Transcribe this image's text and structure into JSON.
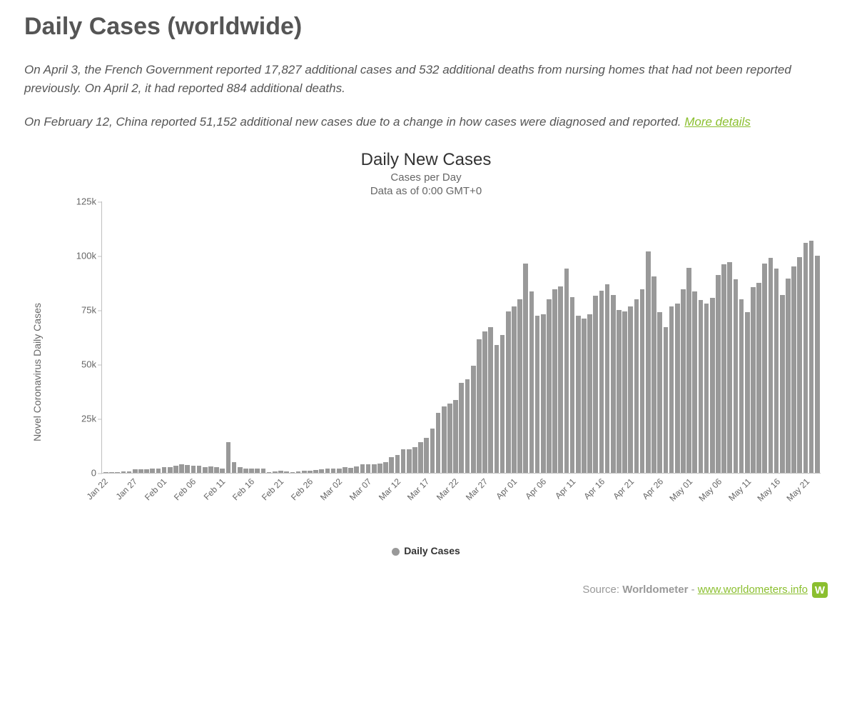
{
  "title": "Daily Cases (worldwide)",
  "notes": {
    "p1": "On April 3, the French Government reported 17,827 additional cases and 532 additional deaths from nursing homes that had not been reported previously. On April 2, it had reported 884 additional deaths.",
    "p2": "On February 12, China reported 51,152 additional new cases due to a change in how cases were diagnosed and reported. ",
    "more_label": "More details"
  },
  "chart": {
    "type": "bar",
    "title": "Daily New Cases",
    "subtitle1": "Cases per Day",
    "subtitle2": "Data as of 0:00 GMT+0",
    "y_axis_title": "Novel Coronavirus Daily Cases",
    "ylim": [
      0,
      125000
    ],
    "yticks": [
      {
        "v": 0,
        "label": "0"
      },
      {
        "v": 25000,
        "label": "25k"
      },
      {
        "v": 50000,
        "label": "50k"
      },
      {
        "v": 75000,
        "label": "75k"
      },
      {
        "v": 100000,
        "label": "100k"
      },
      {
        "v": 125000,
        "label": "125k"
      }
    ],
    "bar_color": "#999999",
    "axis_color": "#bfbfbf",
    "tick_font_color": "#666666",
    "title_color": "#333333",
    "background_color": "#ffffff",
    "legend_label": "Daily Cases",
    "legend_dot_color": "#999999",
    "x_tick_every": 5,
    "series": [
      {
        "date": "Jan 22",
        "value": 200
      },
      {
        "date": "Jan 23",
        "value": 300
      },
      {
        "date": "Jan 24",
        "value": 500
      },
      {
        "date": "Jan 25",
        "value": 700
      },
      {
        "date": "Jan 26",
        "value": 800
      },
      {
        "date": "Jan 27",
        "value": 1800
      },
      {
        "date": "Jan 28",
        "value": 1500
      },
      {
        "date": "Jan 29",
        "value": 1700
      },
      {
        "date": "Jan 30",
        "value": 2000
      },
      {
        "date": "Jan 31",
        "value": 2100
      },
      {
        "date": "Feb 01",
        "value": 2600
      },
      {
        "date": "Feb 02",
        "value": 2800
      },
      {
        "date": "Feb 03",
        "value": 3200
      },
      {
        "date": "Feb 04",
        "value": 3900
      },
      {
        "date": "Feb 05",
        "value": 3700
      },
      {
        "date": "Feb 06",
        "value": 3200
      },
      {
        "date": "Feb 07",
        "value": 3400
      },
      {
        "date": "Feb 08",
        "value": 2700
      },
      {
        "date": "Feb 09",
        "value": 3000
      },
      {
        "date": "Feb 10",
        "value": 2500
      },
      {
        "date": "Feb 11",
        "value": 2000
      },
      {
        "date": "Feb 12",
        "value": 14200
      },
      {
        "date": "Feb 13",
        "value": 5100
      },
      {
        "date": "Feb 14",
        "value": 2700
      },
      {
        "date": "Feb 15",
        "value": 2100
      },
      {
        "date": "Feb 16",
        "value": 2100
      },
      {
        "date": "Feb 17",
        "value": 2000
      },
      {
        "date": "Feb 18",
        "value": 1900
      },
      {
        "date": "Feb 19",
        "value": 500
      },
      {
        "date": "Feb 20",
        "value": 600
      },
      {
        "date": "Feb 21",
        "value": 1000
      },
      {
        "date": "Feb 22",
        "value": 700
      },
      {
        "date": "Feb 23",
        "value": 500
      },
      {
        "date": "Feb 24",
        "value": 600
      },
      {
        "date": "Feb 25",
        "value": 900
      },
      {
        "date": "Feb 26",
        "value": 1000
      },
      {
        "date": "Feb 27",
        "value": 1400
      },
      {
        "date": "Feb 28",
        "value": 1800
      },
      {
        "date": "Feb 29",
        "value": 2000
      },
      {
        "date": "Mar 01",
        "value": 2000
      },
      {
        "date": "Mar 02",
        "value": 2000
      },
      {
        "date": "Mar 03",
        "value": 2600
      },
      {
        "date": "Mar 04",
        "value": 2400
      },
      {
        "date": "Mar 05",
        "value": 3000
      },
      {
        "date": "Mar 06",
        "value": 4000
      },
      {
        "date": "Mar 07",
        "value": 4100
      },
      {
        "date": "Mar 08",
        "value": 4000
      },
      {
        "date": "Mar 09",
        "value": 4300
      },
      {
        "date": "Mar 10",
        "value": 4900
      },
      {
        "date": "Mar 11",
        "value": 7300
      },
      {
        "date": "Mar 12",
        "value": 8300
      },
      {
        "date": "Mar 13",
        "value": 10900
      },
      {
        "date": "Mar 14",
        "value": 11000
      },
      {
        "date": "Mar 15",
        "value": 11700
      },
      {
        "date": "Mar 16",
        "value": 14000
      },
      {
        "date": "Mar 17",
        "value": 16000
      },
      {
        "date": "Mar 18",
        "value": 20500
      },
      {
        "date": "Mar 19",
        "value": 27500
      },
      {
        "date": "Mar 20",
        "value": 30500
      },
      {
        "date": "Mar 21",
        "value": 32000
      },
      {
        "date": "Mar 22",
        "value": 33500
      },
      {
        "date": "Mar 23",
        "value": 41500
      },
      {
        "date": "Mar 24",
        "value": 43000
      },
      {
        "date": "Mar 25",
        "value": 49500
      },
      {
        "date": "Mar 26",
        "value": 61500
      },
      {
        "date": "Mar 27",
        "value": 65000
      },
      {
        "date": "Mar 28",
        "value": 67000
      },
      {
        "date": "Mar 29",
        "value": 59000
      },
      {
        "date": "Mar 30",
        "value": 63500
      },
      {
        "date": "Mar 31",
        "value": 74500
      },
      {
        "date": "Apr 01",
        "value": 76500
      },
      {
        "date": "Apr 02",
        "value": 80000
      },
      {
        "date": "Apr 03",
        "value": 96500
      },
      {
        "date": "Apr 04",
        "value": 83500
      },
      {
        "date": "Apr 05",
        "value": 72500
      },
      {
        "date": "Apr 06",
        "value": 73000
      },
      {
        "date": "Apr 07",
        "value": 80000
      },
      {
        "date": "Apr 08",
        "value": 84500
      },
      {
        "date": "Apr 09",
        "value": 86000
      },
      {
        "date": "Apr 10",
        "value": 94000
      },
      {
        "date": "Apr 11",
        "value": 81000
      },
      {
        "date": "Apr 12",
        "value": 72500
      },
      {
        "date": "Apr 13",
        "value": 71000
      },
      {
        "date": "Apr 14",
        "value": 73000
      },
      {
        "date": "Apr 15",
        "value": 81500
      },
      {
        "date": "Apr 16",
        "value": 84000
      },
      {
        "date": "Apr 17",
        "value": 87000
      },
      {
        "date": "Apr 18",
        "value": 82000
      },
      {
        "date": "Apr 19",
        "value": 75000
      },
      {
        "date": "Apr 20",
        "value": 74500
      },
      {
        "date": "Apr 21",
        "value": 76500
      },
      {
        "date": "Apr 22",
        "value": 80000
      },
      {
        "date": "Apr 23",
        "value": 84500
      },
      {
        "date": "Apr 24",
        "value": 102000
      },
      {
        "date": "Apr 25",
        "value": 90500
      },
      {
        "date": "Apr 26",
        "value": 74000
      },
      {
        "date": "Apr 27",
        "value": 67000
      },
      {
        "date": "Apr 28",
        "value": 76500
      },
      {
        "date": "Apr 29",
        "value": 78000
      },
      {
        "date": "Apr 30",
        "value": 84500
      },
      {
        "date": "May 01",
        "value": 94500
      },
      {
        "date": "May 02",
        "value": 83500
      },
      {
        "date": "May 03",
        "value": 79500
      },
      {
        "date": "May 04",
        "value": 78000
      },
      {
        "date": "May 05",
        "value": 80500
      },
      {
        "date": "May 06",
        "value": 91000
      },
      {
        "date": "May 07",
        "value": 96000
      },
      {
        "date": "May 08",
        "value": 97000
      },
      {
        "date": "May 09",
        "value": 89000
      },
      {
        "date": "May 10",
        "value": 80000
      },
      {
        "date": "May 11",
        "value": 74000
      },
      {
        "date": "May 12",
        "value": 85500
      },
      {
        "date": "May 13",
        "value": 87500
      },
      {
        "date": "May 14",
        "value": 96500
      },
      {
        "date": "May 15",
        "value": 99000
      },
      {
        "date": "May 16",
        "value": 94000
      },
      {
        "date": "May 17",
        "value": 82000
      },
      {
        "date": "May 18",
        "value": 89500
      },
      {
        "date": "May 19",
        "value": 95000
      },
      {
        "date": "May 20",
        "value": 99500
      },
      {
        "date": "May 21",
        "value": 106000
      },
      {
        "date": "May 22",
        "value": 107000
      },
      {
        "date": "May 23",
        "value": 100000
      }
    ]
  },
  "source": {
    "prefix": "Source: ",
    "name": "Worldometer",
    "sep": " - ",
    "url_label": "www.worldometers.info",
    "badge": "W"
  },
  "colors": {
    "accent_green": "#8bbf2f",
    "text_gray": "#555555",
    "light_gray": "#999999"
  }
}
